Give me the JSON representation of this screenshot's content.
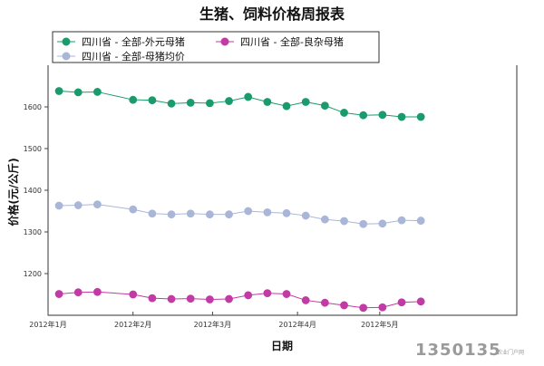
{
  "page": {
    "background": "#ffffff"
  },
  "chart_data": {
    "type": "line",
    "title": "生猪、饲料价格周报表",
    "xlabel": "日期",
    "ylabel": "价格(元/公斤)",
    "ylim": [
      1100,
      1700
    ],
    "yticks": [
      1200,
      1300,
      1400,
      1500,
      1600
    ],
    "x_range": [
      "2012-01-01",
      "2012-06-20"
    ],
    "x_ticks": [
      {
        "date": "2012-01-01",
        "label": "2012年1月"
      },
      {
        "date": "2012-02-01",
        "label": "2012年2月"
      },
      {
        "date": "2012-03-01",
        "label": "2012年3月"
      },
      {
        "date": "2012-04-01",
        "label": "2012年4月"
      },
      {
        "date": "2012-05-01",
        "label": "2012年5月"
      }
    ],
    "x": [
      "2012-01-05",
      "2012-01-12",
      "2012-01-19",
      "2012-02-01",
      "2012-02-08",
      "2012-02-15",
      "2012-02-22",
      "2012-02-29",
      "2012-03-07",
      "2012-03-14",
      "2012-03-21",
      "2012-03-28",
      "2012-04-04",
      "2012-04-11",
      "2012-04-18",
      "2012-04-25",
      "2012-05-02",
      "2012-05-09",
      "2012-05-16",
      "2012-05-23"
    ],
    "grid": false,
    "legend_position": "top",
    "series": [
      {
        "name": "四川省 - 全部-外元母猪",
        "color": "#1a9b6c",
        "values": [
          1638,
          1635,
          1636,
          1617,
          1616,
          1608,
          1610,
          1609,
          1614,
          1624,
          1612,
          1602,
          1612,
          1603,
          1586,
          1580,
          1581,
          1576,
          1576,
          null
        ]
      },
      {
        "name": "四川省 - 全部-良杂母猪",
        "color": "#c23aa4",
        "values": [
          1151,
          1155,
          1156,
          1150,
          1141,
          1139,
          1140,
          1138,
          1139,
          1148,
          1153,
          1151,
          1136,
          1130,
          1124,
          1118,
          1119,
          1131,
          1133,
          null
        ]
      },
      {
        "name": "四川省 - 全部-母猪均价",
        "color": "#a9b6d8",
        "values": [
          1363,
          1364,
          1366,
          1354,
          1344,
          1342,
          1344,
          1342,
          1342,
          1350,
          1347,
          1345,
          1339,
          1330,
          1326,
          1319,
          1320,
          1328,
          1327,
          null
        ]
      }
    ]
  },
  "legend": {
    "items": [
      {
        "label": "四川省 - 全部-外元母猪",
        "color": "#1a9b6c"
      },
      {
        "label": "四川省 - 全部-良杂母猪",
        "color": "#c23aa4"
      },
      {
        "label": "四川省 - 全部-母猪均价",
        "color": "#a9b6d8"
      }
    ]
  },
  "watermark": {
    "main": "1350135",
    "sub": "农业门户网"
  }
}
